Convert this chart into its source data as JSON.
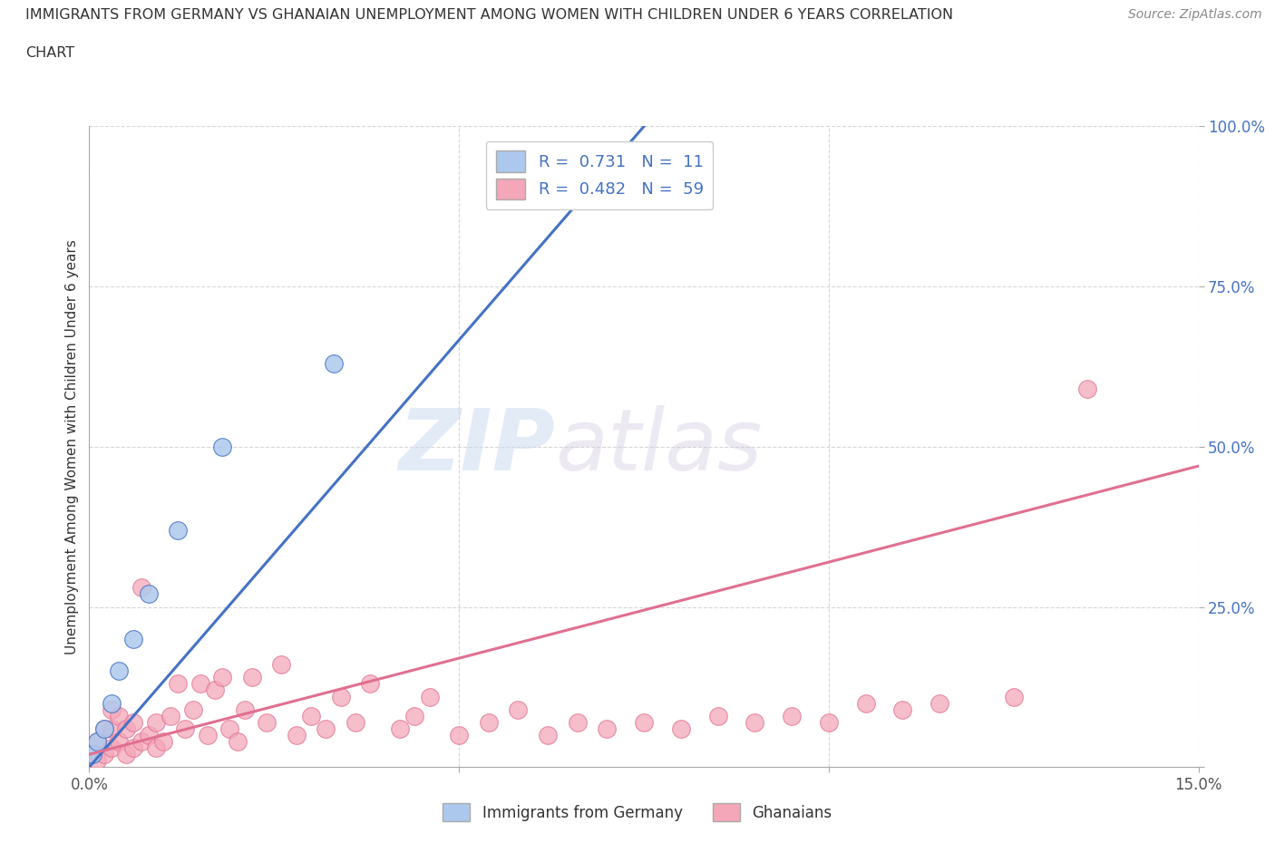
{
  "title_line1": "IMMIGRANTS FROM GERMANY VS GHANAIAN UNEMPLOYMENT AMONG WOMEN WITH CHILDREN UNDER 6 YEARS CORRELATION",
  "title_line2": "CHART",
  "source": "Source: ZipAtlas.com",
  "ylabel": "Unemployment Among Women with Children Under 6 years",
  "xlabel_germany": "Immigrants from Germany",
  "xlabel_ghanaians": "Ghanaians",
  "xlim": [
    0,
    0.15
  ],
  "ylim": [
    0,
    1.0
  ],
  "germany_R": 0.731,
  "germany_N": 11,
  "ghanaian_R": 0.482,
  "ghanaian_N": 59,
  "germany_color": "#adc8ed",
  "ghanaian_color": "#f4a7b9",
  "germany_line_color": "#4472c4",
  "ghanaian_line_color": "#e07090",
  "watermark_zip": "ZIP",
  "watermark_atlas": "atlas",
  "germany_scatter_x": [
    0.0005,
    0.001,
    0.002,
    0.003,
    0.004,
    0.006,
    0.008,
    0.012,
    0.018,
    0.033,
    0.055
  ],
  "germany_scatter_y": [
    0.02,
    0.04,
    0.06,
    0.1,
    0.15,
    0.2,
    0.27,
    0.37,
    0.5,
    0.63,
    0.96
  ],
  "ghanaian_scatter_x": [
    0.001,
    0.001,
    0.002,
    0.002,
    0.003,
    0.003,
    0.003,
    0.004,
    0.004,
    0.005,
    0.005,
    0.006,
    0.006,
    0.007,
    0.007,
    0.008,
    0.009,
    0.009,
    0.01,
    0.011,
    0.012,
    0.013,
    0.014,
    0.015,
    0.016,
    0.017,
    0.018,
    0.019,
    0.02,
    0.021,
    0.022,
    0.024,
    0.026,
    0.028,
    0.03,
    0.032,
    0.034,
    0.036,
    0.038,
    0.042,
    0.044,
    0.046,
    0.05,
    0.054,
    0.058,
    0.062,
    0.066,
    0.07,
    0.075,
    0.08,
    0.085,
    0.09,
    0.095,
    0.1,
    0.105,
    0.11,
    0.115,
    0.125,
    0.135
  ],
  "ghanaian_scatter_y": [
    0.01,
    0.04,
    0.02,
    0.06,
    0.03,
    0.06,
    0.09,
    0.04,
    0.08,
    0.02,
    0.06,
    0.03,
    0.07,
    0.04,
    0.28,
    0.05,
    0.03,
    0.07,
    0.04,
    0.08,
    0.13,
    0.06,
    0.09,
    0.13,
    0.05,
    0.12,
    0.14,
    0.06,
    0.04,
    0.09,
    0.14,
    0.07,
    0.16,
    0.05,
    0.08,
    0.06,
    0.11,
    0.07,
    0.13,
    0.06,
    0.08,
    0.11,
    0.05,
    0.07,
    0.09,
    0.05,
    0.07,
    0.06,
    0.07,
    0.06,
    0.08,
    0.07,
    0.08,
    0.07,
    0.1,
    0.09,
    0.1,
    0.11,
    0.59
  ],
  "germany_line_x": [
    0.0,
    0.075
  ],
  "germany_line_y": [
    0.0,
    1.0
  ],
  "ghanaian_line_x": [
    0.0,
    0.15
  ],
  "ghanaian_line_y": [
    0.02,
    0.47
  ]
}
